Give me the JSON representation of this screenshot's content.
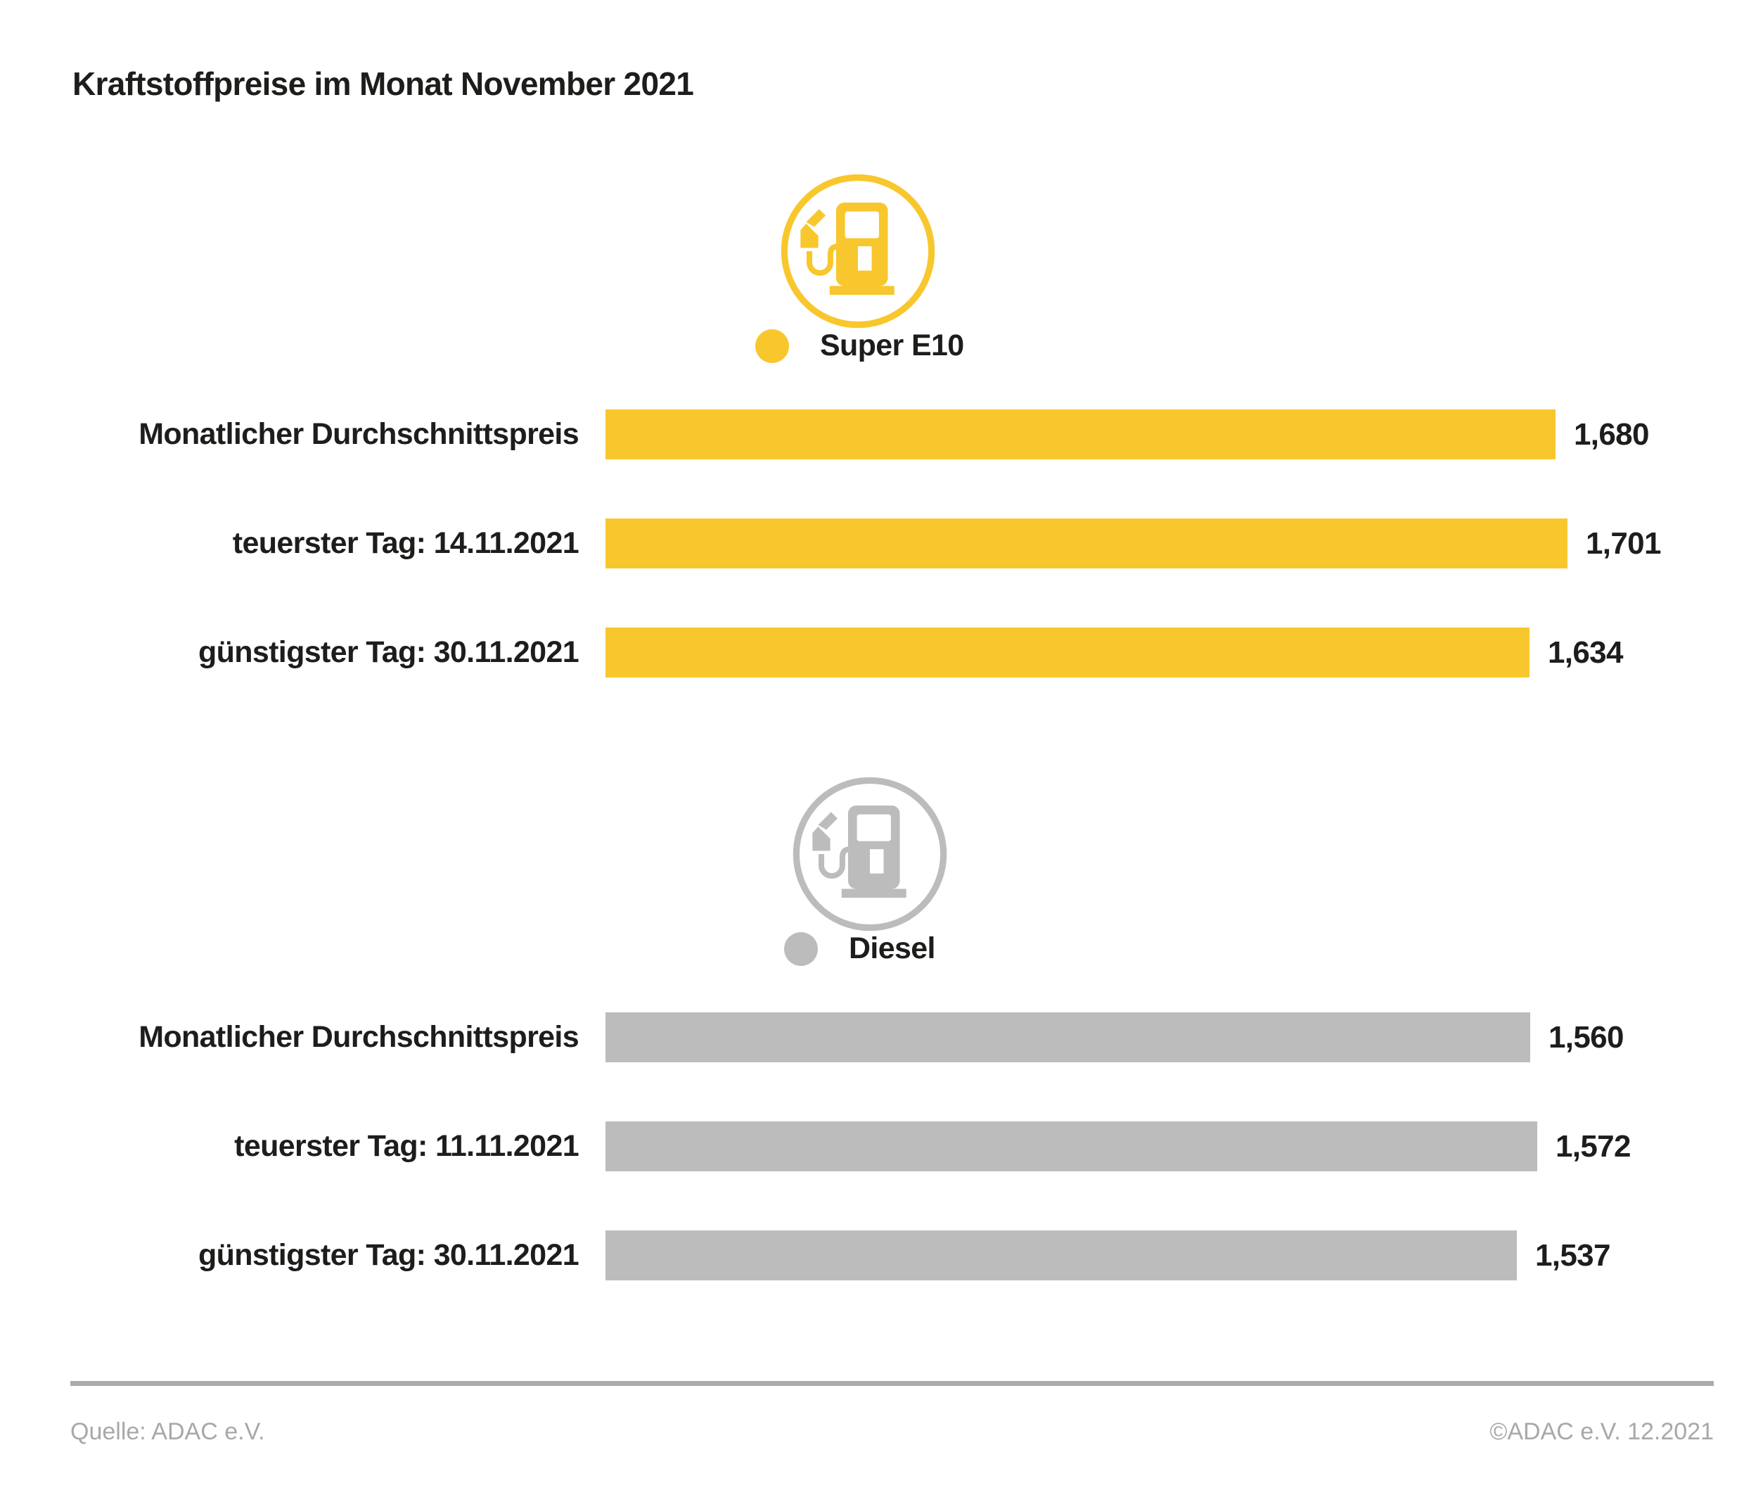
{
  "title": "Kraftstoffpreise im Monat November 2021",
  "colors": {
    "super_e10": "#F8C72D",
    "diesel": "#BCBCBC",
    "text": "#1D1D1B",
    "footer_text": "#A8A8A8",
    "divider": "#ABABAB",
    "background": "#FFFFFF"
  },
  "sections": [
    {
      "id": "super-e10",
      "legend_label": "Super E10",
      "icon": "fuel-pump-icon",
      "color": "#F8C72D",
      "rows": [
        {
          "label": "Monatlicher Durchschnittspreis",
          "value": 1.68,
          "value_label": "1,680"
        },
        {
          "label": "teuerster Tag: 14.11.2021",
          "value": 1.701,
          "value_label": "1,701"
        },
        {
          "label": "günstigster Tag: 30.11.2021",
          "value": 1.634,
          "value_label": "1,634"
        }
      ]
    },
    {
      "id": "diesel",
      "legend_label": "Diesel",
      "icon": "fuel-pump-icon",
      "color": "#BCBCBC",
      "rows": [
        {
          "label": "Monatlicher Durchschnittspreis",
          "value": 1.56,
          "value_label": "1,560"
        },
        {
          "label": "teuerster Tag: 11.11.2021",
          "value": 1.572,
          "value_label": "1,572"
        },
        {
          "label": "günstigster Tag: 30.11.2021",
          "value": 1.537,
          "value_label": "1,537"
        }
      ]
    }
  ],
  "footer": {
    "source": "Quelle: ADAC e.V.",
    "copyright": "©ADAC e.V. 12.2021"
  },
  "chart_data": {
    "type": "bar",
    "orientation": "horizontal",
    "title": "Kraftstoffpreise im Monat November 2021",
    "grid": false,
    "value_axis_visible": false,
    "series": [
      {
        "name": "Super E10",
        "color": "#F8C72D",
        "categories": [
          "Monatlicher Durchschnittspreis",
          "teuerster Tag: 14.11.2021",
          "günstigster Tag: 30.11.2021"
        ],
        "values": [
          1.68,
          1.701,
          1.634
        ],
        "value_labels": [
          "1,680",
          "1,701",
          "1,634"
        ]
      },
      {
        "name": "Diesel",
        "color": "#BCBCBC",
        "categories": [
          "Monatlicher Durchschnittspreis",
          "teuerster Tag: 11.11.2021",
          "günstigster Tag: 30.11.2021"
        ],
        "values": [
          1.56,
          1.572,
          1.537
        ],
        "value_labels": [
          "1,560",
          "1,572",
          "1,537"
        ]
      }
    ],
    "source": "Quelle: ADAC e.V."
  }
}
